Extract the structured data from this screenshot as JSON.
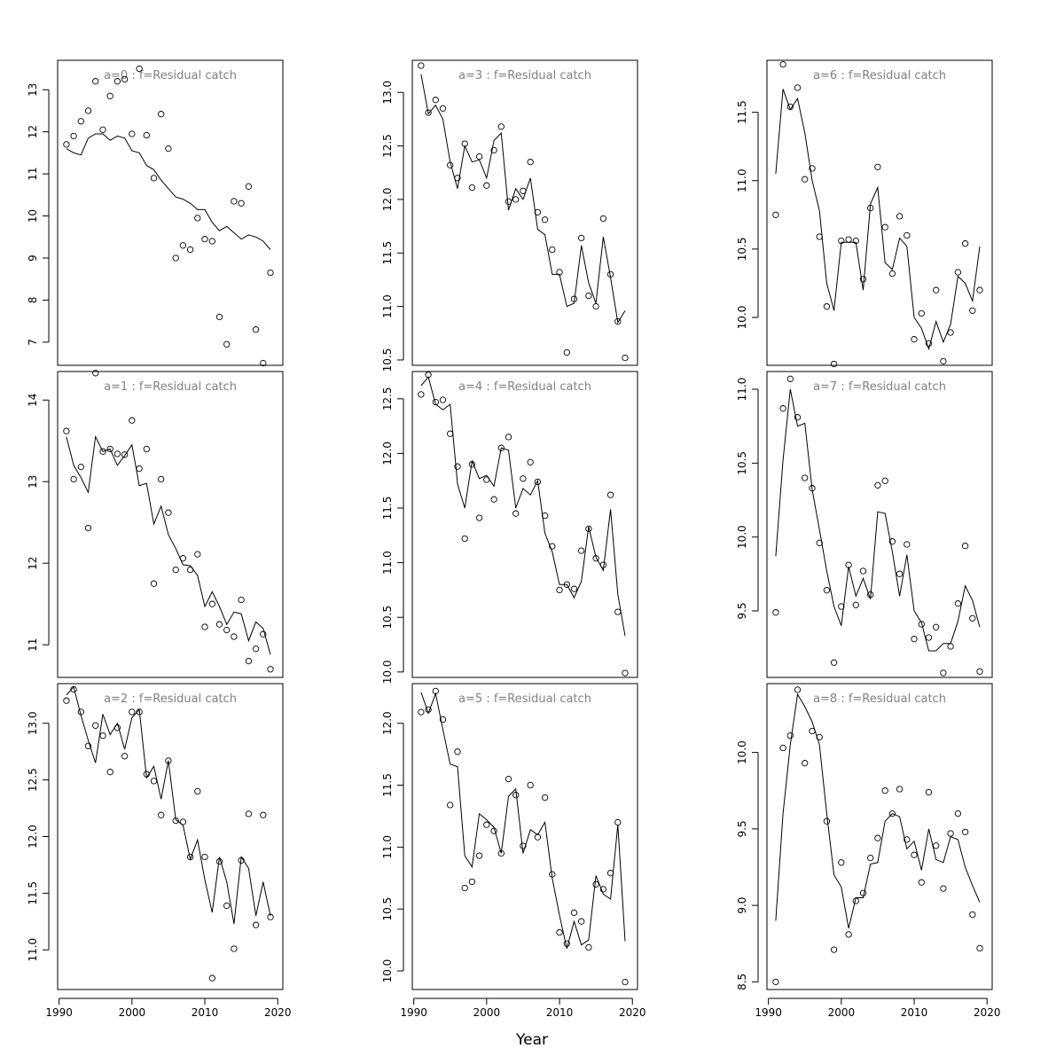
{
  "xlabel": "Year",
  "chart_data": [
    {
      "type": "scatter",
      "title": "a=0  :  f=Residual catch",
      "ylim": [
        6.45,
        13.7
      ],
      "yticks": [
        7,
        8,
        9,
        10,
        11,
        12,
        13
      ],
      "x": [
        1991,
        1992,
        1993,
        1994,
        1995,
        1996,
        1997,
        1998,
        1999,
        2000,
        2001,
        2002,
        2003,
        2004,
        2005,
        2006,
        2007,
        2008,
        2009,
        2010,
        2011,
        2012,
        2013,
        2014,
        2015,
        2016,
        2017,
        2018,
        2019
      ],
      "points": [
        11.7,
        11.9,
        12.25,
        12.5,
        13.2,
        12.05,
        12.85,
        13.2,
        13.25,
        11.95,
        13.5,
        11.92,
        10.9,
        12.42,
        11.6,
        9.0,
        9.3,
        9.2,
        9.95,
        9.45,
        9.4,
        7.6,
        6.95,
        10.35,
        10.3,
        10.7,
        7.3,
        6.5,
        8.65
      ],
      "fit": [
        11.6,
        11.5,
        11.45,
        11.85,
        11.95,
        11.95,
        11.8,
        11.9,
        11.85,
        11.55,
        11.5,
        11.2,
        11.1,
        10.85,
        10.65,
        10.45,
        10.4,
        10.3,
        10.15,
        10.15,
        9.85,
        9.65,
        9.75,
        9.6,
        9.45,
        9.55,
        9.5,
        9.4,
        9.2
      ]
    },
    {
      "type": "scatter",
      "title": "a=1  :  f=Residual catch",
      "ylim": [
        10.6,
        14.35
      ],
      "yticks": [
        11,
        12,
        13,
        14
      ],
      "x": [
        1991,
        1992,
        1993,
        1994,
        1995,
        1996,
        1997,
        1998,
        1999,
        2000,
        2001,
        2002,
        2003,
        2004,
        2005,
        2006,
        2007,
        2008,
        2009,
        2010,
        2011,
        2012,
        2013,
        2014,
        2015,
        2016,
        2017,
        2018,
        2019
      ],
      "points": [
        13.62,
        13.03,
        13.18,
        12.43,
        14.33,
        13.37,
        13.4,
        13.34,
        13.33,
        13.75,
        13.16,
        13.4,
        11.75,
        13.03,
        12.62,
        11.92,
        12.06,
        11.92,
        12.11,
        11.22,
        11.5,
        11.25,
        11.18,
        11.1,
        11.55,
        10.8,
        10.95,
        11.13,
        10.7
      ],
      "fit": [
        13.55,
        13.2,
        13.05,
        12.87,
        13.55,
        13.37,
        13.4,
        13.2,
        13.32,
        13.45,
        12.95,
        12.98,
        12.48,
        12.7,
        12.35,
        12.18,
        11.98,
        11.97,
        11.85,
        11.47,
        11.65,
        11.47,
        11.25,
        11.4,
        11.38,
        11.05,
        11.28,
        11.2,
        10.88
      ]
    },
    {
      "type": "scatter",
      "title": "a=2  :  f=Residual catch",
      "ylim": [
        10.65,
        13.35
      ],
      "yticks": [
        11.0,
        11.5,
        12.0,
        12.5,
        13.0
      ],
      "x": [
        1991,
        1992,
        1993,
        1994,
        1995,
        1996,
        1997,
        1998,
        1999,
        2000,
        2001,
        2002,
        2003,
        2004,
        2005,
        2006,
        2007,
        2008,
        2009,
        2010,
        2011,
        2012,
        2013,
        2014,
        2015,
        2016,
        2017,
        2018,
        2019
      ],
      "points": [
        13.2,
        13.3,
        13.1,
        12.8,
        12.98,
        12.89,
        12.57,
        12.96,
        12.71,
        13.1,
        13.1,
        12.55,
        12.49,
        12.19,
        12.67,
        12.14,
        12.13,
        11.82,
        12.4,
        11.82,
        10.75,
        11.78,
        11.39,
        11.01,
        11.79,
        12.2,
        11.22,
        12.19,
        11.29
      ],
      "fit": [
        13.25,
        13.32,
        13.07,
        12.85,
        12.65,
        13.08,
        12.9,
        13.0,
        12.77,
        13.05,
        13.12,
        12.52,
        12.62,
        12.33,
        12.67,
        12.15,
        12.1,
        11.8,
        11.97,
        11.62,
        11.33,
        11.82,
        11.6,
        11.23,
        11.82,
        11.72,
        11.3,
        11.6,
        11.3
      ]
    },
    {
      "type": "scatter",
      "title": "a=3  :  f=Residual catch",
      "ylim": [
        10.45,
        13.3
      ],
      "yticks": [
        10.5,
        11.0,
        11.5,
        12.0,
        12.5,
        13.0
      ],
      "x": [
        1991,
        1992,
        1993,
        1994,
        1995,
        1996,
        1997,
        1998,
        1999,
        2000,
        2001,
        2002,
        2003,
        2004,
        2005,
        2006,
        2007,
        2008,
        2009,
        2010,
        2011,
        2012,
        2013,
        2014,
        2015,
        2016,
        2017,
        2018,
        2019
      ],
      "points": [
        13.25,
        12.81,
        12.93,
        12.85,
        12.32,
        12.2,
        12.52,
        12.11,
        12.4,
        12.13,
        12.46,
        12.68,
        11.98,
        12.0,
        12.08,
        12.35,
        11.88,
        11.81,
        11.53,
        11.32,
        10.57,
        11.07,
        11.64,
        11.1,
        11.0,
        11.82,
        11.3,
        10.86,
        10.52
      ],
      "fit": [
        13.17,
        12.8,
        12.88,
        12.75,
        12.35,
        12.1,
        12.5,
        12.35,
        12.37,
        12.2,
        12.55,
        12.62,
        11.9,
        12.1,
        12.0,
        12.2,
        11.72,
        11.67,
        11.3,
        11.3,
        11.0,
        11.03,
        11.57,
        11.22,
        11.03,
        11.65,
        11.27,
        10.85,
        10.96
      ]
    },
    {
      "type": "scatter",
      "title": "a=4  :  f=Residual catch",
      "ylim": [
        9.95,
        12.75
      ],
      "yticks": [
        10.0,
        10.5,
        11.0,
        11.5,
        12.0,
        12.5
      ],
      "x": [
        1991,
        1992,
        1993,
        1994,
        1995,
        1996,
        1997,
        1998,
        1999,
        2000,
        2001,
        2002,
        2003,
        2004,
        2005,
        2006,
        2007,
        2008,
        2009,
        2010,
        2011,
        2012,
        2013,
        2014,
        2015,
        2016,
        2017,
        2018,
        2019
      ],
      "points": [
        12.54,
        12.72,
        12.47,
        12.49,
        12.18,
        11.88,
        11.22,
        11.9,
        11.41,
        11.76,
        11.58,
        12.05,
        12.15,
        11.45,
        11.77,
        11.92,
        11.74,
        11.43,
        11.15,
        10.75,
        10.8,
        10.76,
        11.11,
        11.31,
        11.04,
        10.98,
        11.62,
        10.55,
        9.99
      ],
      "fit": [
        12.62,
        12.7,
        12.45,
        12.4,
        12.45,
        11.72,
        11.5,
        11.93,
        11.77,
        11.8,
        11.7,
        12.05,
        12.03,
        11.5,
        11.68,
        11.62,
        11.75,
        11.27,
        11.1,
        10.8,
        10.8,
        10.68,
        10.83,
        11.33,
        11.05,
        10.93,
        11.49,
        10.71,
        10.33
      ]
    },
    {
      "type": "scatter",
      "title": "a=5  :  f=Residual catch",
      "ylim": [
        9.85,
        12.32
      ],
      "yticks": [
        10.0,
        10.5,
        11.0,
        11.5,
        12.0
      ],
      "x": [
        1991,
        1992,
        1993,
        1994,
        1995,
        1996,
        1997,
        1998,
        1999,
        2000,
        2001,
        2002,
        2003,
        2004,
        2005,
        2006,
        2007,
        2008,
        2009,
        2010,
        2011,
        2012,
        2013,
        2014,
        2015,
        2016,
        2017,
        2018,
        2019
      ],
      "points": [
        12.09,
        12.11,
        12.26,
        12.03,
        11.34,
        11.77,
        10.67,
        10.72,
        10.93,
        11.18,
        11.13,
        10.95,
        11.55,
        11.42,
        11.01,
        11.5,
        11.08,
        11.4,
        10.78,
        10.31,
        10.22,
        10.47,
        10.4,
        10.19,
        10.7,
        10.66,
        10.79,
        11.2,
        9.91
      ],
      "fit": [
        12.25,
        12.08,
        12.24,
        11.95,
        11.67,
        11.65,
        10.93,
        10.84,
        11.27,
        11.22,
        11.16,
        10.95,
        11.41,
        11.47,
        10.95,
        11.14,
        11.1,
        11.2,
        10.75,
        10.45,
        10.18,
        10.4,
        10.21,
        10.25,
        10.77,
        10.62,
        10.58,
        11.18,
        10.24
      ]
    },
    {
      "type": "scatter",
      "title": "a=6  :  f=Residual catch",
      "ylim": [
        9.65,
        11.88
      ],
      "yticks": [
        10.0,
        10.5,
        11.0,
        11.5
      ],
      "x": [
        1991,
        1992,
        1993,
        1994,
        1995,
        1996,
        1997,
        1998,
        1999,
        2000,
        2001,
        2002,
        2003,
        2004,
        2005,
        2006,
        2007,
        2008,
        2009,
        2010,
        2011,
        2012,
        2013,
        2014,
        2015,
        2016,
        2017,
        2018,
        2019
      ],
      "points": [
        10.75,
        11.85,
        11.54,
        11.68,
        11.01,
        11.09,
        10.59,
        10.08,
        9.66,
        10.56,
        10.57,
        10.56,
        10.28,
        10.8,
        11.1,
        10.66,
        10.32,
        10.74,
        10.6,
        9.84,
        10.03,
        9.81,
        10.2,
        9.68,
        9.89,
        10.33,
        10.54,
        10.05,
        10.2
      ],
      "fit": [
        11.05,
        11.67,
        11.52,
        11.6,
        11.35,
        11.0,
        10.78,
        10.25,
        10.05,
        10.55,
        10.55,
        10.55,
        10.2,
        10.83,
        10.95,
        10.4,
        10.35,
        10.58,
        10.52,
        10.0,
        9.92,
        9.77,
        9.97,
        9.82,
        9.95,
        10.3,
        10.25,
        10.12,
        10.52
      ]
    },
    {
      "type": "scatter",
      "title": "a=7  :  f=Residual catch",
      "ylim": [
        9.05,
        11.12
      ],
      "yticks": [
        9.5,
        10.0,
        10.5,
        11.0
      ],
      "x": [
        1991,
        1992,
        1993,
        1994,
        1995,
        1996,
        1997,
        1998,
        1999,
        2000,
        2001,
        2002,
        2003,
        2004,
        2005,
        2006,
        2007,
        2008,
        2009,
        2010,
        2011,
        2012,
        2013,
        2014,
        2015,
        2016,
        2017,
        2018,
        2019
      ],
      "points": [
        9.49,
        10.87,
        11.07,
        10.81,
        10.4,
        10.33,
        9.96,
        9.64,
        9.15,
        9.53,
        9.81,
        9.54,
        9.77,
        9.61,
        10.35,
        10.38,
        9.97,
        9.75,
        9.95,
        9.31,
        9.41,
        9.32,
        9.39,
        9.08,
        9.26,
        9.55,
        9.94,
        9.45,
        9.09
      ],
      "fit": [
        9.87,
        10.52,
        11.0,
        10.75,
        10.77,
        10.32,
        10.05,
        9.77,
        9.53,
        9.4,
        9.8,
        9.6,
        9.72,
        9.58,
        10.17,
        10.16,
        9.9,
        9.6,
        9.88,
        9.5,
        9.42,
        9.23,
        9.23,
        9.28,
        9.28,
        9.43,
        9.67,
        9.57,
        9.39
      ]
    },
    {
      "type": "scatter",
      "title": "a=8  :  f=Residual catch",
      "ylim": [
        8.45,
        10.45
      ],
      "yticks": [
        8.5,
        9.0,
        9.5,
        10.0
      ],
      "x": [
        1991,
        1992,
        1993,
        1994,
        1995,
        1996,
        1997,
        1998,
        1999,
        2000,
        2001,
        2002,
        2003,
        2004,
        2005,
        2006,
        2007,
        2008,
        2009,
        2010,
        2011,
        2012,
        2013,
        2014,
        2015,
        2016,
        2017,
        2018,
        2019
      ],
      "points": [
        8.5,
        10.03,
        10.11,
        10.41,
        9.93,
        10.14,
        10.1,
        9.55,
        8.71,
        9.28,
        8.81,
        9.03,
        9.08,
        9.31,
        9.44,
        9.75,
        9.6,
        9.76,
        9.43,
        9.33,
        9.15,
        9.74,
        9.39,
        9.11,
        9.47,
        9.6,
        9.48,
        8.94,
        8.72
      ],
      "fit": [
        8.9,
        9.6,
        10.05,
        10.38,
        10.3,
        10.2,
        10.05,
        9.6,
        9.2,
        9.12,
        8.85,
        9.05,
        9.05,
        9.27,
        9.28,
        9.55,
        9.6,
        9.58,
        9.37,
        9.42,
        9.23,
        9.5,
        9.3,
        9.28,
        9.45,
        9.43,
        9.25,
        9.13,
        9.02
      ]
    }
  ]
}
